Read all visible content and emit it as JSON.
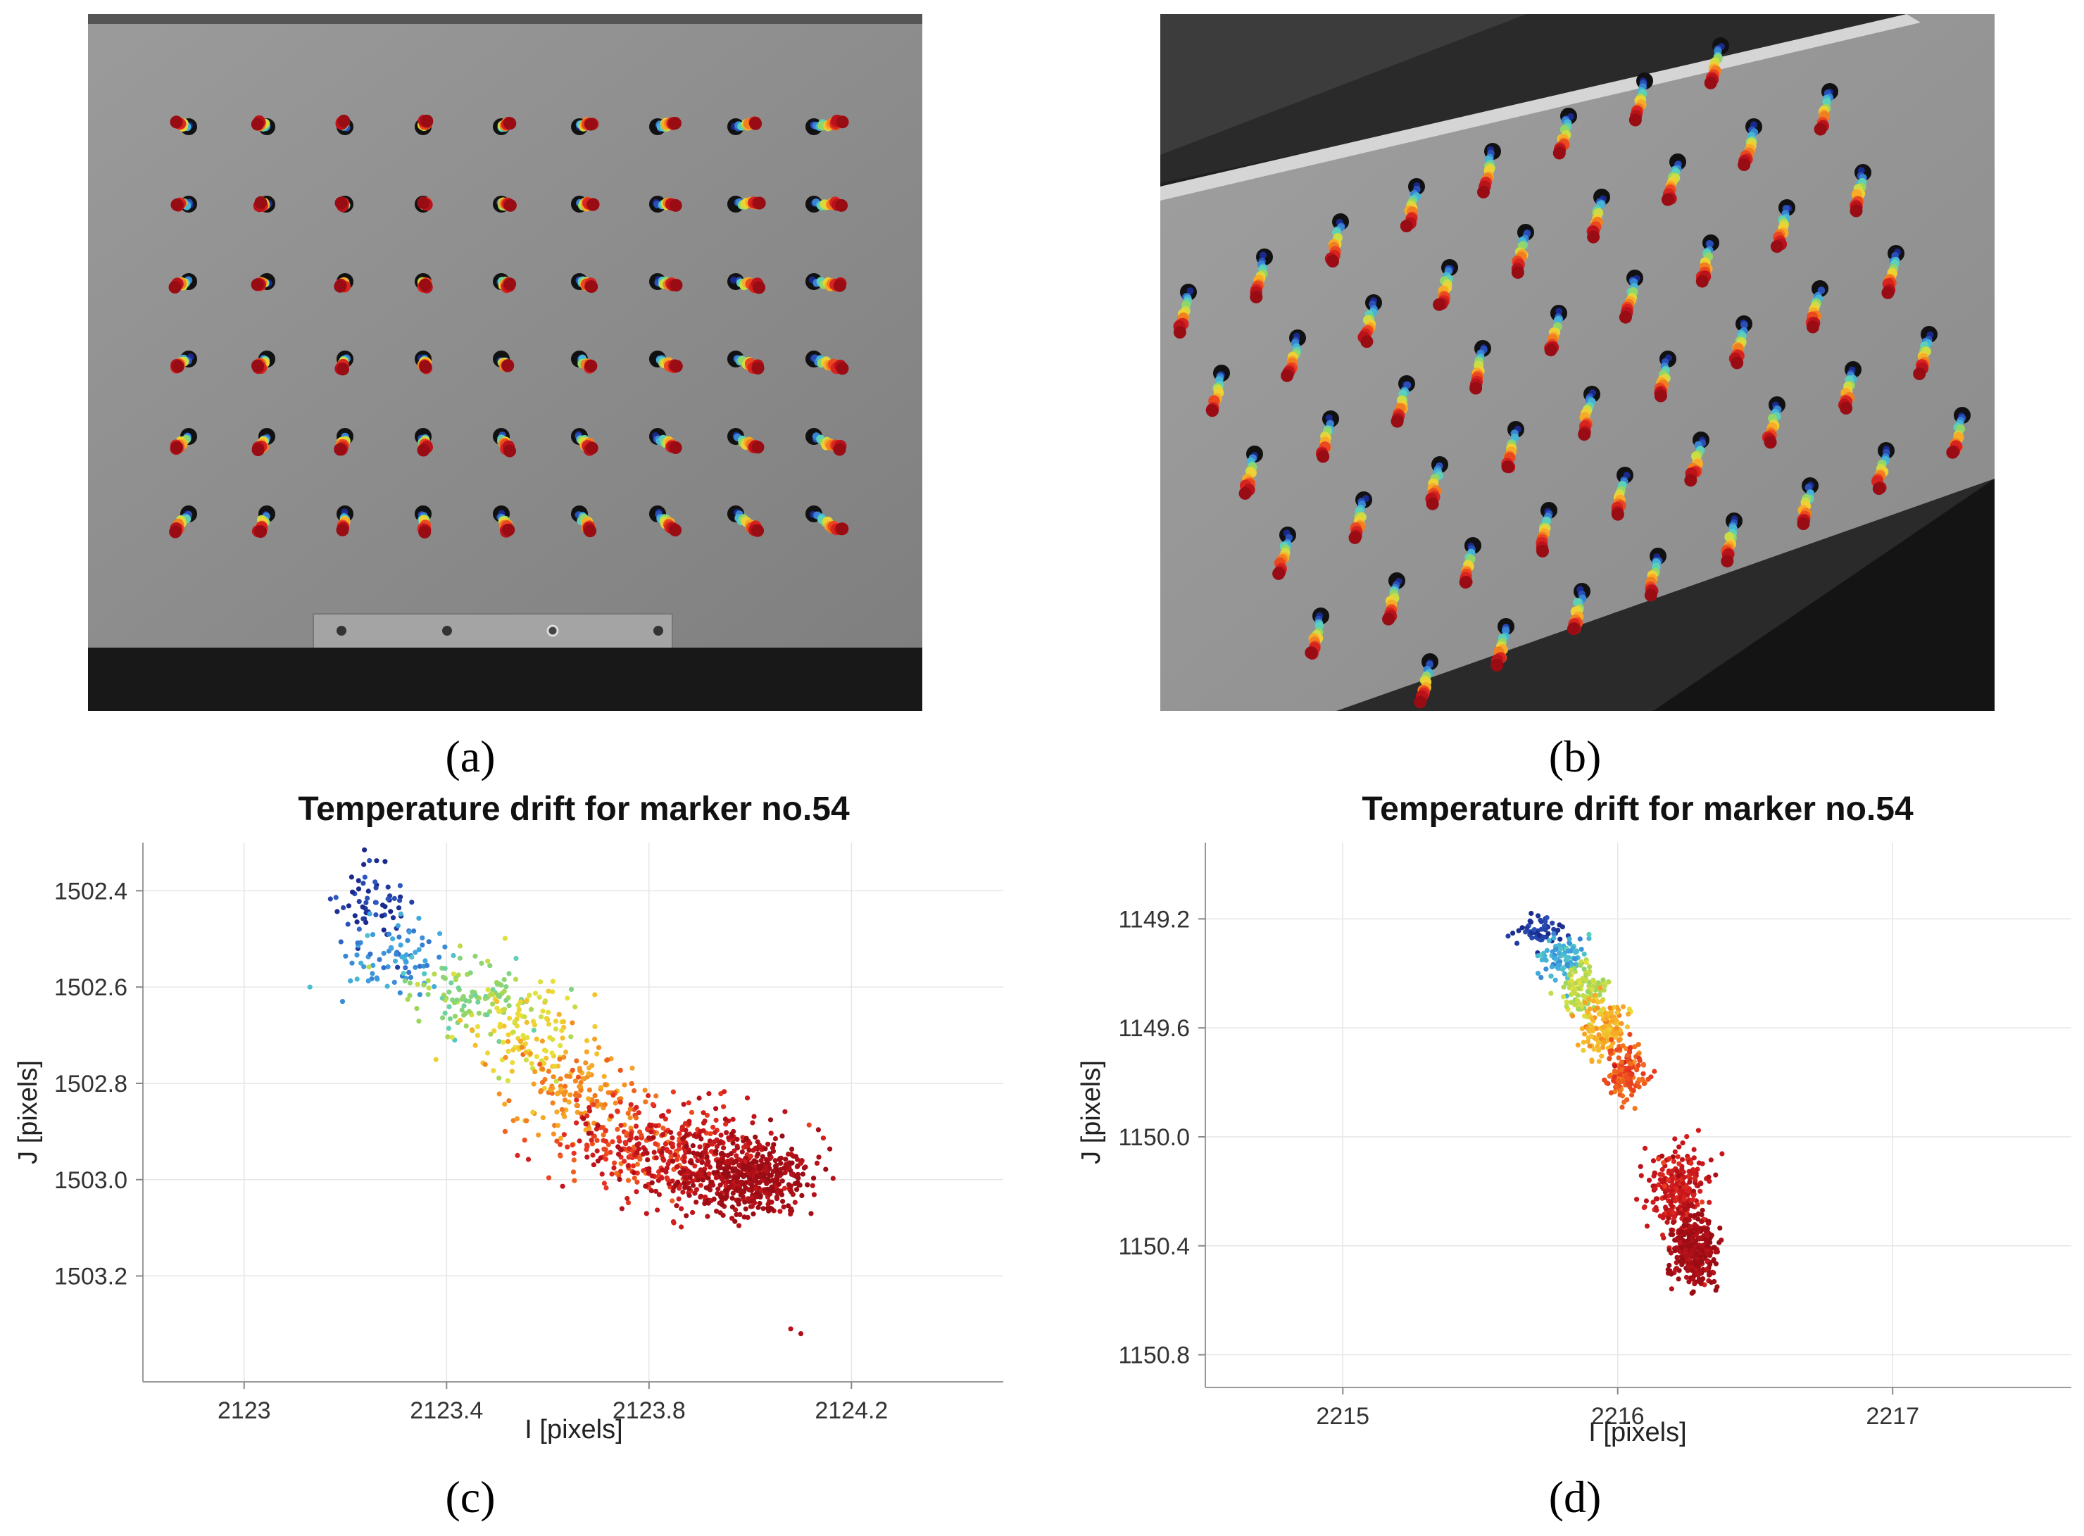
{
  "captions": [
    "(a)",
    "(b)",
    "(c)",
    "(d)"
  ],
  "colors": {
    "colormap": [
      "#1a2a8c",
      "#2f5bc4",
      "#3fa7e0",
      "#58d0c0",
      "#9dd65a",
      "#e8e23a",
      "#f7b52a",
      "#f27a1e",
      "#e83220",
      "#c4141c",
      "#9a0c14"
    ],
    "plate": "#8a8a8a",
    "hole": "#111111"
  },
  "chart_data": [
    {
      "type": "scatter",
      "panel": "(c)",
      "title": "Temperature drift for marker no.54",
      "xlabel": "I [pixels]",
      "ylabel": "J [pixels]",
      "xlim": [
        2122.8,
        2124.5
      ],
      "ylim": [
        1503.42,
        1502.3
      ],
      "y_inverted": true,
      "xticks": [
        2123,
        2123.4,
        2123.8,
        2124.2
      ],
      "xtick_labels": [
        "2123",
        "2123.4",
        "2123.8",
        "2124.2"
      ],
      "yticks": [
        1502.4,
        1502.6,
        1502.8,
        1503.0,
        1503.2
      ],
      "ytick_labels": [
        "1502.4",
        "1502.6",
        "1502.8",
        "1503.0",
        "1503.2"
      ],
      "grid": true,
      "colorscale": "jet (time order)",
      "clusters": [
        {
          "x": 2123.25,
          "y": 1502.42,
          "sx": 0.04,
          "sy": 0.04,
          "n": 60,
          "t": 0.03
        },
        {
          "x": 2123.3,
          "y": 1502.54,
          "sx": 0.05,
          "sy": 0.04,
          "n": 80,
          "t": 0.18
        },
        {
          "x": 2123.45,
          "y": 1502.62,
          "sx": 0.06,
          "sy": 0.04,
          "n": 110,
          "t": 0.38
        },
        {
          "x": 2123.55,
          "y": 1502.7,
          "sx": 0.06,
          "sy": 0.05,
          "n": 120,
          "t": 0.52
        },
        {
          "x": 2123.65,
          "y": 1502.82,
          "sx": 0.07,
          "sy": 0.05,
          "n": 140,
          "t": 0.66
        },
        {
          "x": 2123.78,
          "y": 1502.93,
          "sx": 0.08,
          "sy": 0.05,
          "n": 200,
          "t": 0.78
        },
        {
          "x": 2123.9,
          "y": 1502.95,
          "sx": 0.09,
          "sy": 0.05,
          "n": 320,
          "t": 0.9
        },
        {
          "x": 2124.0,
          "y": 1503.0,
          "sx": 0.06,
          "sy": 0.035,
          "n": 400,
          "t": 0.98
        }
      ],
      "outliers": [
        {
          "x": 2124.08,
          "y": 1503.31,
          "t": 0.92
        },
        {
          "x": 2124.1,
          "y": 1503.32,
          "t": 0.95
        },
        {
          "x": 2123.13,
          "y": 1502.6,
          "t": 0.25
        }
      ]
    },
    {
      "type": "scatter",
      "panel": "(d)",
      "title": "Temperature drift for marker no.54",
      "xlabel": "I [pixels]",
      "ylabel": "J [pixels]",
      "xlim": [
        2214.5,
        2217.65
      ],
      "ylim": [
        1150.92,
        1148.92
      ],
      "y_inverted": true,
      "xticks": [
        2215,
        2216,
        2217
      ],
      "xtick_labels": [
        "2215",
        "2216",
        "2217"
      ],
      "yticks": [
        1149.2,
        1149.6,
        1150.0,
        1150.4,
        1150.8
      ],
      "ytick_labels": [
        "1149.2",
        "1149.6",
        "1150.0",
        "1150.4",
        "1150.8"
      ],
      "grid": true,
      "colorscale": "jet (time order)",
      "clusters": [
        {
          "x": 2215.72,
          "y": 1149.24,
          "sx": 0.04,
          "sy": 0.03,
          "n": 60,
          "t": 0.03
        },
        {
          "x": 2215.8,
          "y": 1149.34,
          "sx": 0.04,
          "sy": 0.04,
          "n": 90,
          "t": 0.22
        },
        {
          "x": 2215.88,
          "y": 1149.46,
          "sx": 0.04,
          "sy": 0.05,
          "n": 110,
          "t": 0.45
        },
        {
          "x": 2215.95,
          "y": 1149.6,
          "sx": 0.04,
          "sy": 0.05,
          "n": 140,
          "t": 0.6
        },
        {
          "x": 2216.03,
          "y": 1149.76,
          "sx": 0.04,
          "sy": 0.05,
          "n": 140,
          "t": 0.75
        },
        {
          "x": 2216.22,
          "y": 1150.2,
          "sx": 0.05,
          "sy": 0.08,
          "n": 260,
          "t": 0.88
        },
        {
          "x": 2216.28,
          "y": 1150.42,
          "sx": 0.04,
          "sy": 0.06,
          "n": 320,
          "t": 0.98
        }
      ],
      "outliers": []
    }
  ]
}
